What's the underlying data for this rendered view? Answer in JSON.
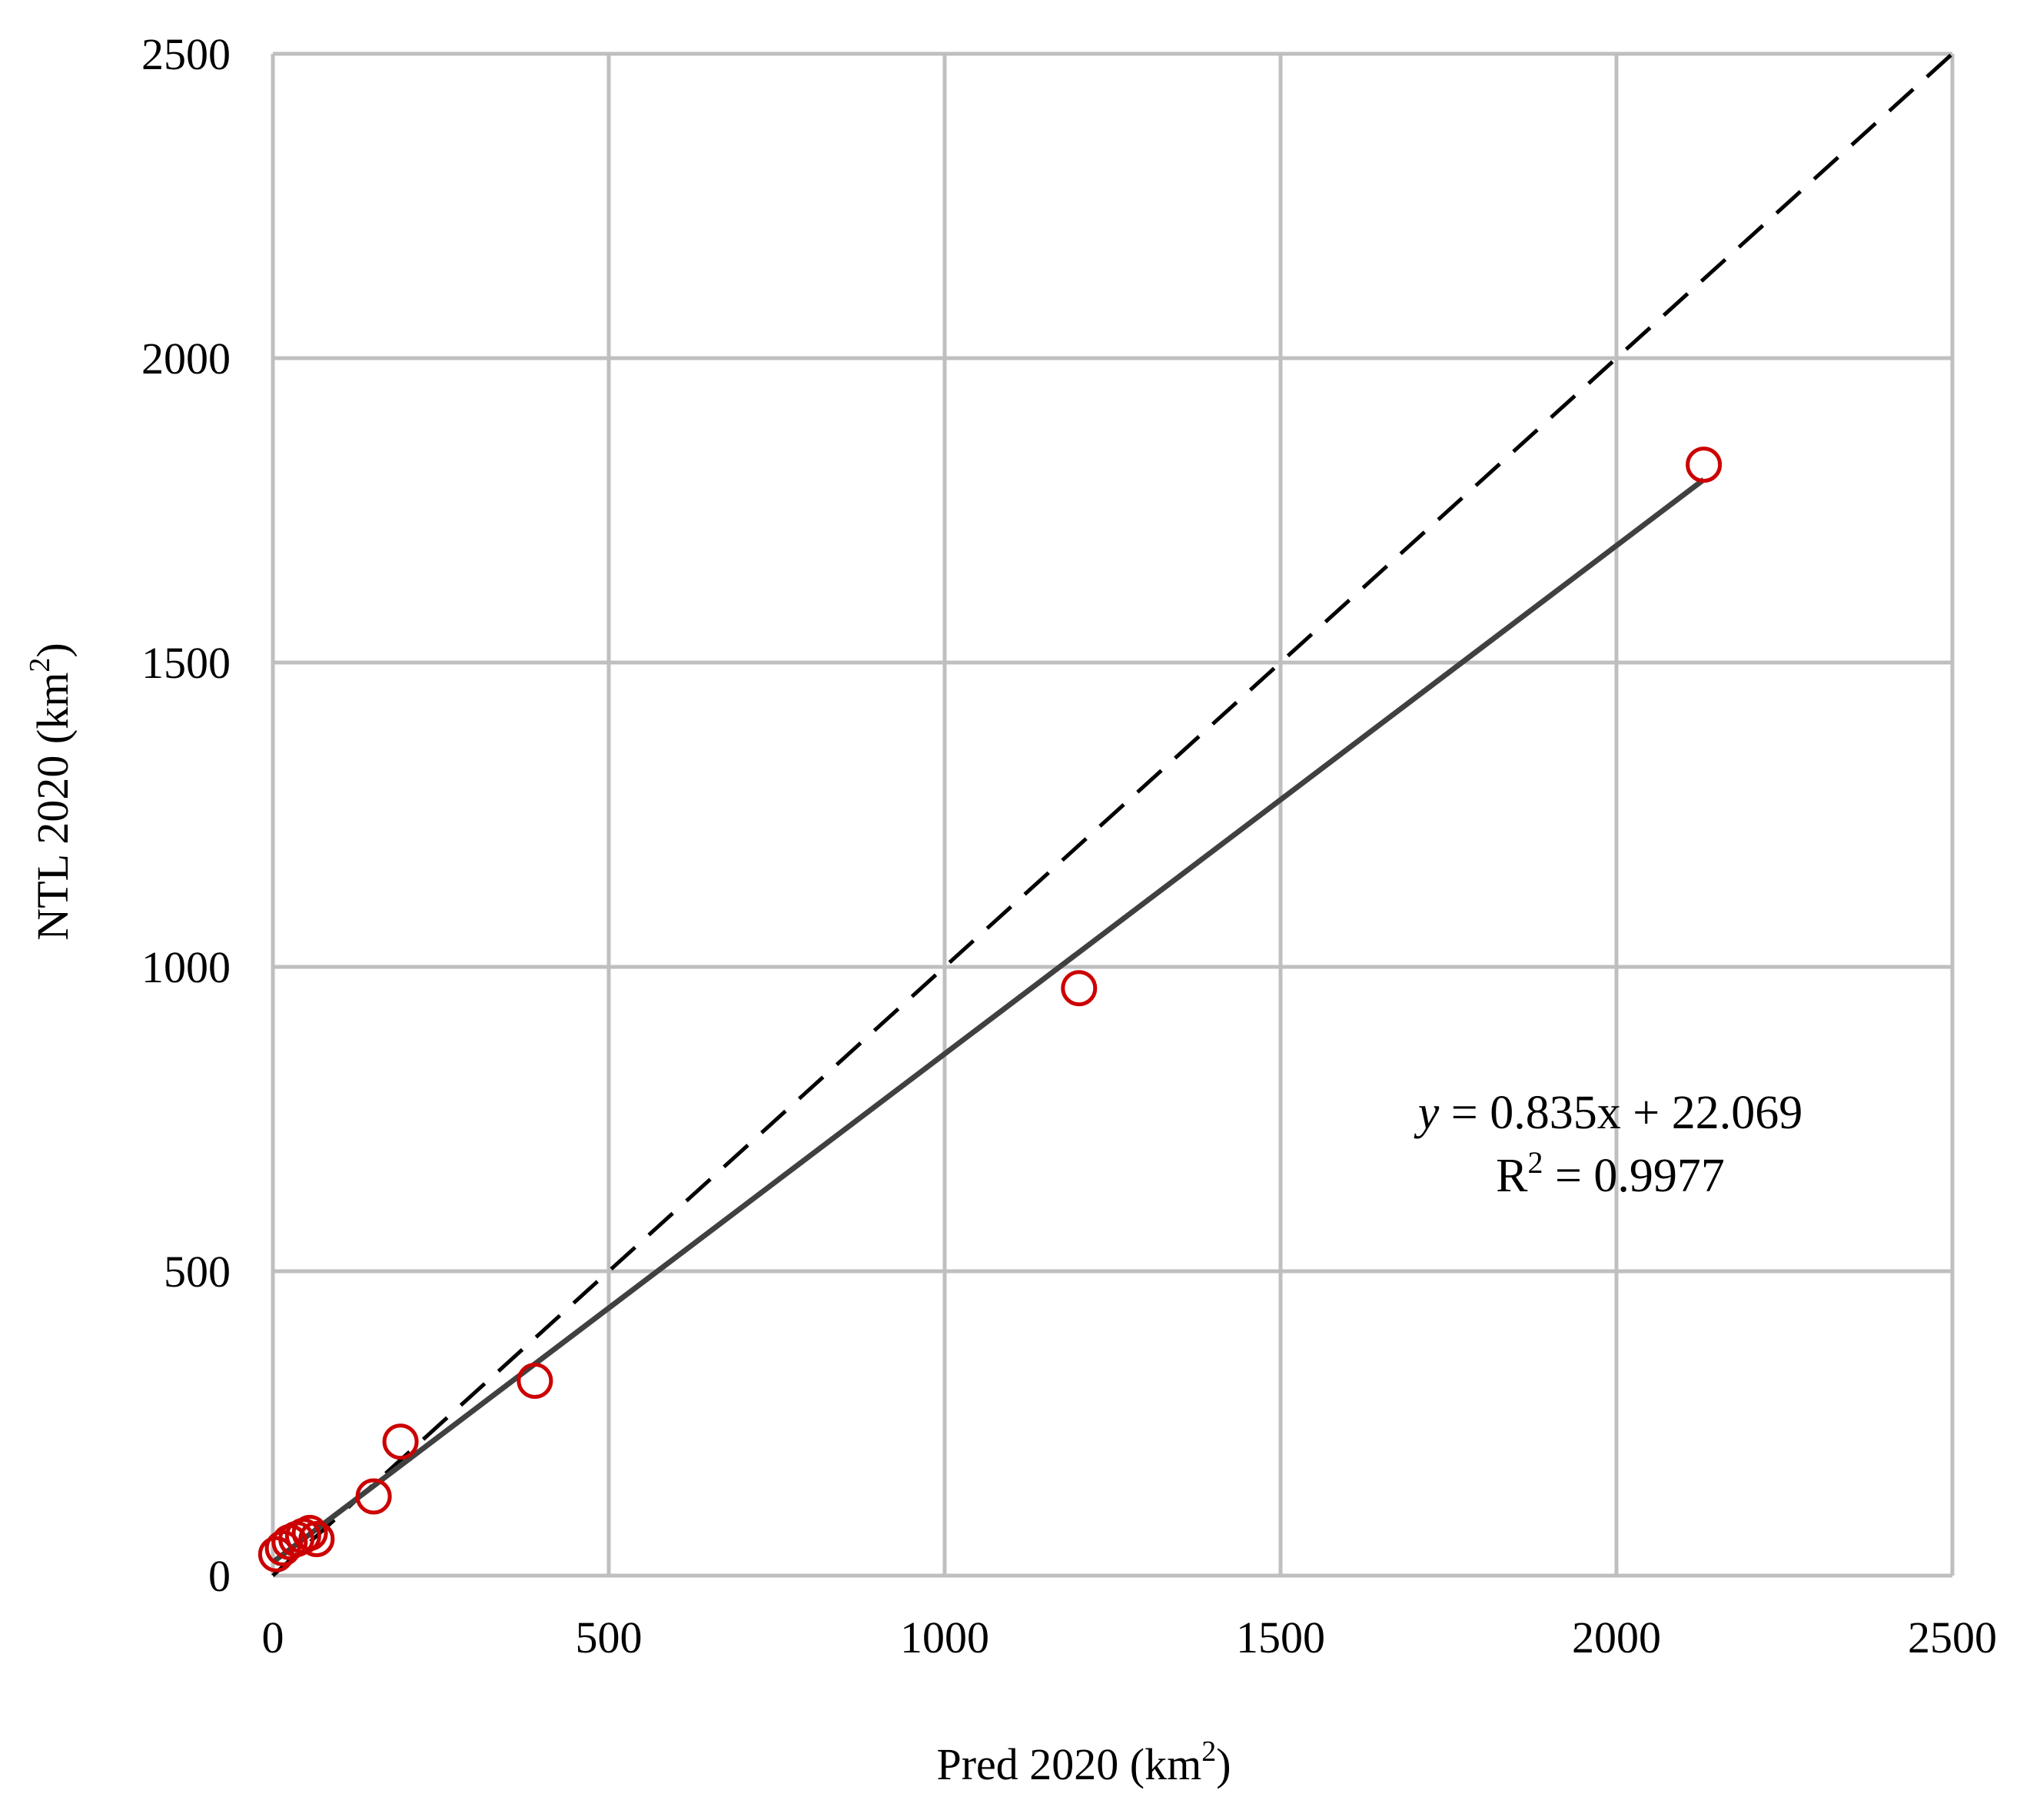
{
  "chart_data": {
    "type": "scatter",
    "title": "",
    "xlabel": "Pred 2020 (km",
    "xlabel_sup": "2",
    "xlabel_end": ")",
    "ylabel": "NTL 2020 (km",
    "ylabel_sup": "2",
    "ylabel_end": ")",
    "xlim": [
      0,
      2500
    ],
    "ylim": [
      0,
      2500
    ],
    "xticks": [
      "0",
      "500",
      "1000",
      "1500",
      "2000",
      "2500"
    ],
    "yticks": [
      "0",
      "500",
      "1000",
      "1500",
      "2000",
      "2500"
    ],
    "grid": true,
    "series": [
      {
        "marker": "open-circle",
        "color": "#cc0000",
        "points": [
          {
            "x": 5,
            "y": 35
          },
          {
            "x": 15,
            "y": 45
          },
          {
            "x": 25,
            "y": 55
          },
          {
            "x": 35,
            "y": 60
          },
          {
            "x": 45,
            "y": 65
          },
          {
            "x": 55,
            "y": 70
          },
          {
            "x": 65,
            "y": 60
          },
          {
            "x": 150,
            "y": 130
          },
          {
            "x": 190,
            "y": 220
          },
          {
            "x": 390,
            "y": 320
          },
          {
            "x": 1200,
            "y": 965
          },
          {
            "x": 2130,
            "y": 1825
          }
        ]
      }
    ],
    "trendline": {
      "slope": 0.835,
      "intercept": 22.069,
      "x_range": [
        0,
        2130
      ],
      "color": "#404040"
    },
    "reference_line": {
      "from": [
        0,
        0
      ],
      "to": [
        2500,
        2500
      ],
      "style": "dashed",
      "color": "#000000"
    },
    "annotation": {
      "equation_y": "y",
      "equation_rest": " = 0.835x + 22.069",
      "r2_prefix": "R",
      "r2_sup": "2",
      "r2_rest": " = 0.9977"
    }
  }
}
